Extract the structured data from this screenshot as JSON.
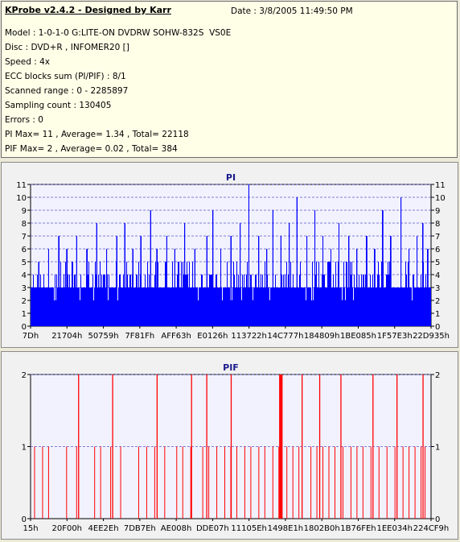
{
  "header": {
    "title": "KProbe v2.4.2 - Designed by Karr",
    "date": "Date : 3/8/2005 11:49:50 PM",
    "lines": [
      "Model : 1-0-1-0 G:LITE-ON DVDRW SOHW-832S  VS0E",
      "Disc : DVD+R , INFOMER20 []",
      "Speed : 4x",
      "ECC blocks sum (PI/PIF) : 8/1",
      "Scanned range : 0 - 2285897",
      "Sampling count : 130405",
      "Errors : 0",
      "PI Max= 11 , Average= 1.34 , Total= 22118",
      "PIF Max= 2 , Average= 0.02 , Total= 384"
    ]
  },
  "colors": {
    "pi": "#0000ff",
    "pif": "#ff0000",
    "plot_bg": "#f2f2fe",
    "grid": "#5a5ac8",
    "title": "#1a1a8c"
  },
  "chart_data": [
    {
      "type": "bar",
      "title": "PI",
      "xlabel": "",
      "ylabel": "",
      "ylim": [
        0,
        11
      ],
      "yticks": [
        "0",
        "1",
        "2",
        "3",
        "4",
        "5",
        "6",
        "7",
        "8",
        "9",
        "10",
        "11"
      ],
      "xtick_labels": [
        "7Dh",
        "21704h",
        "50759h",
        "7F81Fh",
        "AFF63h",
        "E0126h",
        "113722h",
        "14C777h",
        "184809h",
        "1BE085h",
        "1F57E3h",
        "22D935h"
      ],
      "grid": true,
      "baseline_typical": 3,
      "peaks": [
        {
          "pos": 0.02,
          "v": 5
        },
        {
          "pos": 0.045,
          "v": 6
        },
        {
          "pos": 0.07,
          "v": 7
        },
        {
          "pos": 0.09,
          "v": 6
        },
        {
          "pos": 0.115,
          "v": 7
        },
        {
          "pos": 0.14,
          "v": 6
        },
        {
          "pos": 0.165,
          "v": 8
        },
        {
          "pos": 0.19,
          "v": 6
        },
        {
          "pos": 0.215,
          "v": 7
        },
        {
          "pos": 0.235,
          "v": 8
        },
        {
          "pos": 0.255,
          "v": 6
        },
        {
          "pos": 0.275,
          "v": 7
        },
        {
          "pos": 0.2995,
          "v": 9
        },
        {
          "pos": 0.315,
          "v": 6
        },
        {
          "pos": 0.34,
          "v": 7
        },
        {
          "pos": 0.36,
          "v": 6
        },
        {
          "pos": 0.385,
          "v": 8
        },
        {
          "pos": 0.41,
          "v": 6
        },
        {
          "pos": 0.44,
          "v": 7
        },
        {
          "pos": 0.4555,
          "v": 9
        },
        {
          "pos": 0.475,
          "v": 6
        },
        {
          "pos": 0.5,
          "v": 7
        },
        {
          "pos": 0.5235,
          "v": 8
        },
        {
          "pos": 0.545,
          "v": 11
        },
        {
          "pos": 0.57,
          "v": 7
        },
        {
          "pos": 0.59,
          "v": 6
        },
        {
          "pos": 0.605,
          "v": 9
        },
        {
          "pos": 0.625,
          "v": 7
        },
        {
          "pos": 0.646,
          "v": 8
        },
        {
          "pos": 0.665,
          "v": 10
        },
        {
          "pos": 0.69,
          "v": 7
        },
        {
          "pos": 0.71,
          "v": 9
        },
        {
          "pos": 0.73,
          "v": 7
        },
        {
          "pos": 0.75,
          "v": 6
        },
        {
          "pos": 0.77,
          "v": 8
        },
        {
          "pos": 0.795,
          "v": 7
        },
        {
          "pos": 0.815,
          "v": 6
        },
        {
          "pos": 0.84,
          "v": 7
        },
        {
          "pos": 0.86,
          "v": 6
        },
        {
          "pos": 0.88,
          "v": 9
        },
        {
          "pos": 0.9,
          "v": 7
        },
        {
          "pos": 0.925,
          "v": 10
        },
        {
          "pos": 0.945,
          "v": 6
        },
        {
          "pos": 0.965,
          "v": 7
        },
        {
          "pos": 0.98,
          "v": 8
        },
        {
          "pos": 0.9925,
          "v": 6
        }
      ]
    },
    {
      "type": "bar",
      "title": "PIF",
      "xlabel": "",
      "ylabel": "",
      "ylim": [
        0,
        2
      ],
      "yticks": [
        "0",
        "1",
        "2"
      ],
      "xtick_labels": [
        "15h",
        "20F00h",
        "4EE2Eh",
        "7DB7Eh",
        "AE008h",
        "DDE07h",
        "11105Eh",
        "1498E1h",
        "1802B0h",
        "1B76FEh",
        "1EE034h",
        "224CF9h"
      ],
      "grid": true,
      "ones": [
        0.01,
        0.03,
        0.045,
        0.09,
        0.115,
        0.16,
        0.175,
        0.2,
        0.225,
        0.27,
        0.29,
        0.31,
        0.335,
        0.365,
        0.38,
        0.4,
        0.43,
        0.445,
        0.465,
        0.485,
        0.5,
        0.515,
        0.535,
        0.55,
        0.57,
        0.585,
        0.605,
        0.62,
        0.64,
        0.655,
        0.67,
        0.7,
        0.715,
        0.73,
        0.745,
        0.76,
        0.78,
        0.8,
        0.815,
        0.83,
        0.85,
        0.87,
        0.89,
        0.91,
        0.93,
        0.945,
        0.96,
        0.975,
        0.985
      ],
      "twos": [
        0.12,
        0.205,
        0.316,
        0.402,
        0.44,
        0.501,
        0.622,
        0.624,
        0.626,
        0.628,
        0.678,
        0.722,
        0.775,
        0.855,
        0.915,
        0.98
      ]
    }
  ]
}
